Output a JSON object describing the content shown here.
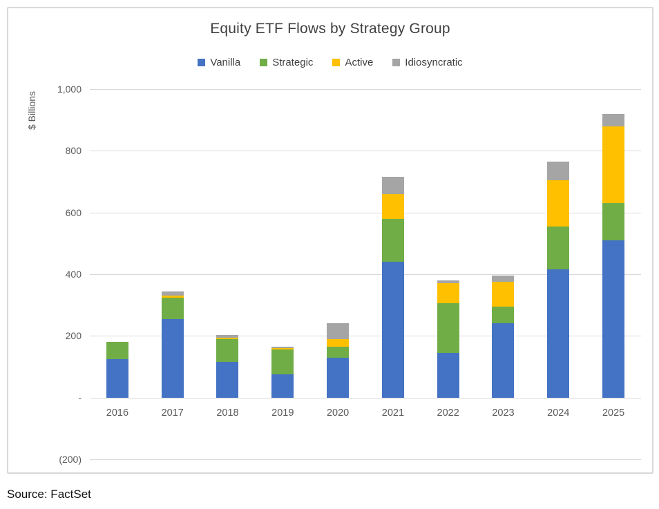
{
  "title": "Equity ETF Flows by Strategy Group",
  "source_note": "Source: FactSet",
  "y_axis_title": "$ Billions",
  "chart_data": {
    "type": "bar",
    "stacked": true,
    "title": "Equity ETF Flows by Strategy Group",
    "ylabel": "$ Billions",
    "xlabel": "",
    "ylim": [
      -200,
      1000
    ],
    "grid": true,
    "legend_position": "top",
    "y_ticks": [
      {
        "value": 1000,
        "label": "1,000"
      },
      {
        "value": 800,
        "label": "800"
      },
      {
        "value": 600,
        "label": "600"
      },
      {
        "value": 400,
        "label": "400"
      },
      {
        "value": 200,
        "label": "200"
      },
      {
        "value": 0,
        "label": "-"
      },
      {
        "value": -200,
        "label": "(200)"
      }
    ],
    "categories": [
      "2016",
      "2017",
      "2018",
      "2019",
      "2020",
      "2021",
      "2022",
      "2023",
      "2024",
      "2025"
    ],
    "series": [
      {
        "name": "Vanilla",
        "color": "#4472C4",
        "values": [
          125,
          255,
          115,
          75,
          130,
          440,
          145,
          240,
          415,
          510
        ]
      },
      {
        "name": "Strategic",
        "color": "#70AD47",
        "values": [
          55,
          70,
          75,
          80,
          35,
          140,
          160,
          55,
          140,
          120
        ]
      },
      {
        "name": "Active",
        "color": "#FFC000",
        "values": [
          0,
          5,
          5,
          5,
          25,
          80,
          65,
          80,
          150,
          250
        ]
      },
      {
        "name": "Idiosyncratic",
        "color": "#A5A5A5",
        "values": [
          0,
          15,
          8,
          4,
          50,
          55,
          10,
          20,
          60,
          40
        ]
      }
    ]
  },
  "colors": {
    "gridline": "#D9D9D9",
    "border": "#D9D9D9",
    "title_text": "#404040",
    "axis_text": "#595959"
  }
}
